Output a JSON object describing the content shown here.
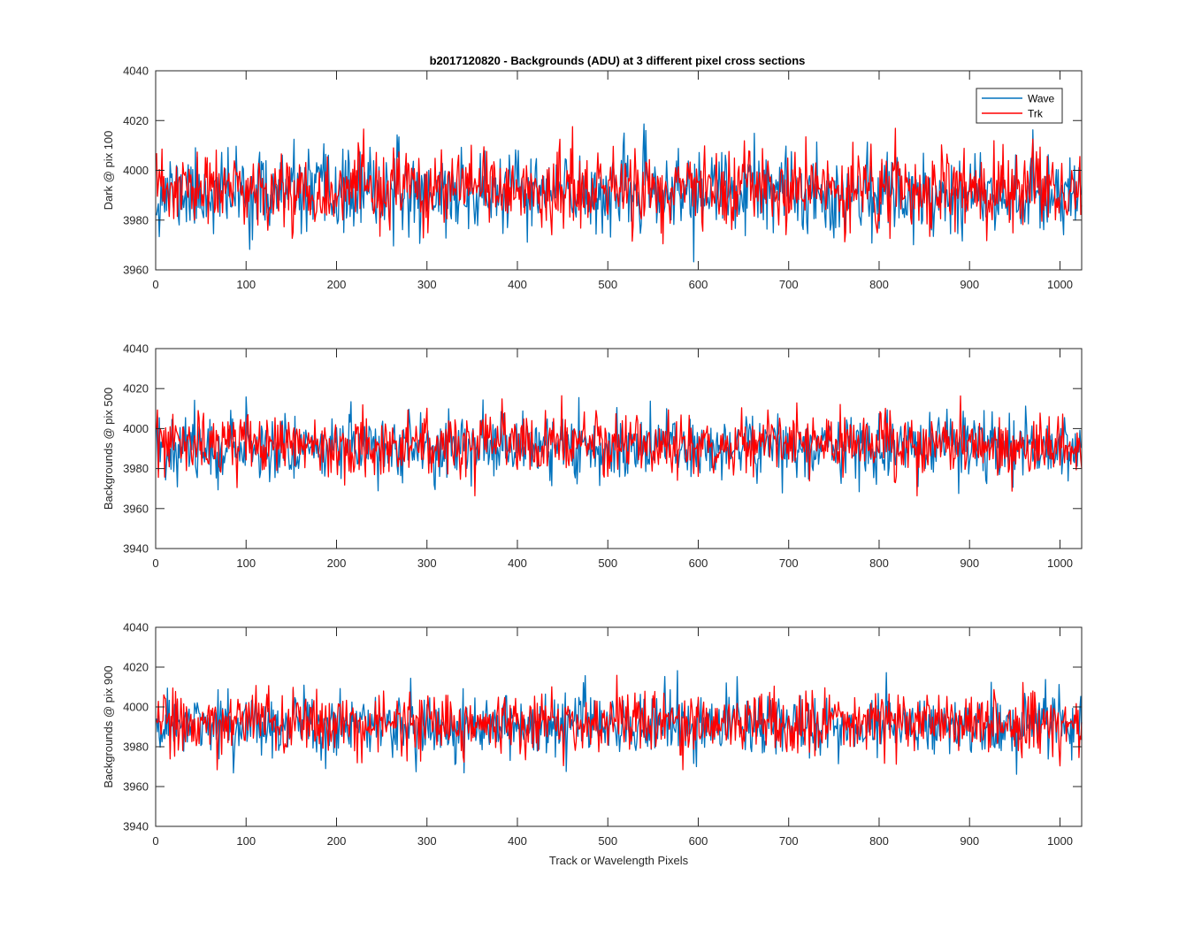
{
  "chart_data": [
    {
      "type": "line",
      "title": "b2017120820 - Backgrounds (ADU) at 3 different pixel cross sections",
      "xlabel": "",
      "ylabel": "Dark @ pix 100",
      "xlim": [
        0,
        1024
      ],
      "ylim": [
        3960,
        4040
      ],
      "xticks": [
        "0",
        "100",
        "200",
        "300",
        "400",
        "500",
        "600",
        "700",
        "800",
        "900",
        "1000"
      ],
      "yticks": [
        "3960",
        "3980",
        "4000",
        "4020",
        "4040"
      ],
      "legend": {
        "position": "top-right",
        "entries": [
          "Wave",
          "Trk"
        ]
      },
      "series": [
        {
          "name": "Wave",
          "color": "#0072BD",
          "seed": 11,
          "mean": 3991,
          "sd": 8,
          "min": 3962,
          "max": 4024
        },
        {
          "name": "Trk",
          "color": "#FF0000",
          "seed": 23,
          "mean": 3992,
          "sd": 7.5,
          "min": 3962,
          "max": 4023
        }
      ]
    },
    {
      "type": "line",
      "title": "",
      "xlabel": "",
      "ylabel": "Backgrounds @ pix 500",
      "xlim": [
        0,
        1024
      ],
      "ylim": [
        3940,
        4040
      ],
      "xticks": [
        "0",
        "100",
        "200",
        "300",
        "400",
        "500",
        "600",
        "700",
        "800",
        "900",
        "1000"
      ],
      "yticks": [
        "3940",
        "3960",
        "3980",
        "4000",
        "4020",
        "4040"
      ],
      "series": [
        {
          "name": "Wave",
          "color": "#0072BD",
          "seed": 37,
          "mean": 3991,
          "sd": 8,
          "min": 3958,
          "max": 4022
        },
        {
          "name": "Trk",
          "color": "#FF0000",
          "seed": 53,
          "mean": 3992,
          "sd": 7.5,
          "min": 3963,
          "max": 4026
        }
      ]
    },
    {
      "type": "line",
      "title": "",
      "xlabel": "Track or Wavelength Pixels",
      "ylabel": "Backgrounds @ pix 900",
      "xlim": [
        0,
        1024
      ],
      "ylim": [
        3940,
        4040
      ],
      "xticks": [
        "0",
        "100",
        "200",
        "300",
        "400",
        "500",
        "600",
        "700",
        "800",
        "900",
        "1000"
      ],
      "yticks": [
        "3940",
        "3960",
        "3980",
        "4000",
        "4020",
        "4040"
      ],
      "series": [
        {
          "name": "Wave",
          "color": "#0072BD",
          "seed": 71,
          "mean": 3991,
          "sd": 8,
          "min": 3959,
          "max": 4022
        },
        {
          "name": "Trk",
          "color": "#FF0000",
          "seed": 89,
          "mean": 3992,
          "sd": 7.5,
          "min": 3963,
          "max": 4024
        }
      ]
    }
  ]
}
